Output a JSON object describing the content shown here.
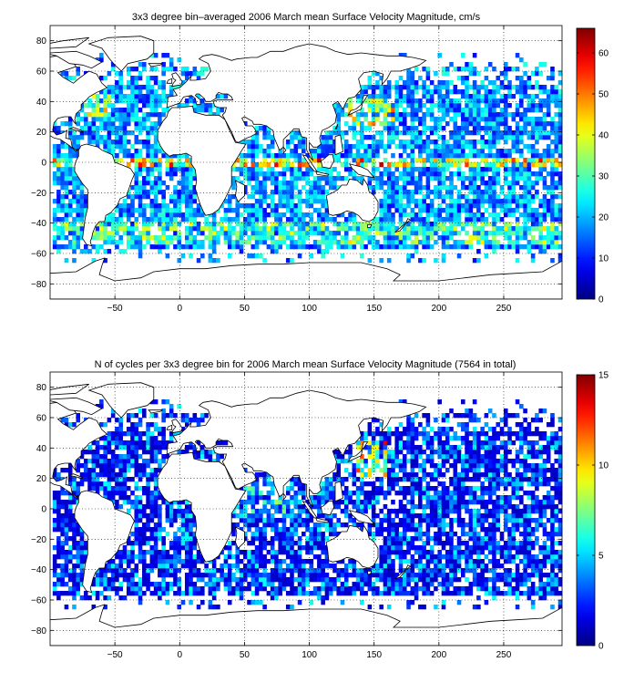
{
  "chart_data": [
    {
      "type": "heatmap",
      "title": "3x3 degree bin–averaged 2006 March mean Surface Velocity Magnitude, cm/s",
      "xlabel": "",
      "ylabel": "",
      "xlim": [
        -100,
        295
      ],
      "ylim": [
        -90,
        90
      ],
      "xticks": [
        -50,
        0,
        50,
        100,
        150,
        200,
        250
      ],
      "xtick_labels": [
        "−50",
        "0",
        "50",
        "100",
        "150",
        "200",
        "250"
      ],
      "yticks": [
        -80,
        -60,
        -40,
        -20,
        0,
        20,
        40,
        60,
        80
      ],
      "ytick_labels": [
        "−80",
        "−60",
        "−40",
        "−20",
        "0",
        "20",
        "40",
        "60",
        "80"
      ],
      "grid": true,
      "bin_size_deg": 3,
      "colorbar": {
        "clim": [
          0,
          66
        ],
        "ticks": [
          0,
          10,
          20,
          30,
          40,
          50,
          60
        ],
        "tick_labels": [
          "0",
          "10",
          "20",
          "30",
          "40",
          "50",
          "60"
        ],
        "colormap": "jet"
      }
    },
    {
      "type": "heatmap",
      "title": "N of cycles per 3x3 degree bin for 2006 March mean Surface Velocity Magnitude (7564 in total)",
      "xlabel": "",
      "ylabel": "",
      "xlim": [
        -100,
        295
      ],
      "ylim": [
        -90,
        90
      ],
      "xticks": [
        -50,
        0,
        50,
        100,
        150,
        200,
        250
      ],
      "xtick_labels": [
        "−50",
        "0",
        "50",
        "100",
        "150",
        "200",
        "250"
      ],
      "yticks": [
        -80,
        -60,
        -40,
        -20,
        0,
        20,
        40,
        60,
        80
      ],
      "ytick_labels": [
        "−80",
        "−60",
        "−40",
        "−20",
        "0",
        "20",
        "40",
        "60",
        "80"
      ],
      "grid": true,
      "bin_size_deg": 3,
      "total_cycles": 7564,
      "colorbar": {
        "clim": [
          0,
          15
        ],
        "ticks": [
          0,
          5,
          10,
          15
        ],
        "tick_labels": [
          "0",
          "5",
          "10",
          "15"
        ],
        "colormap": "jet"
      }
    }
  ]
}
